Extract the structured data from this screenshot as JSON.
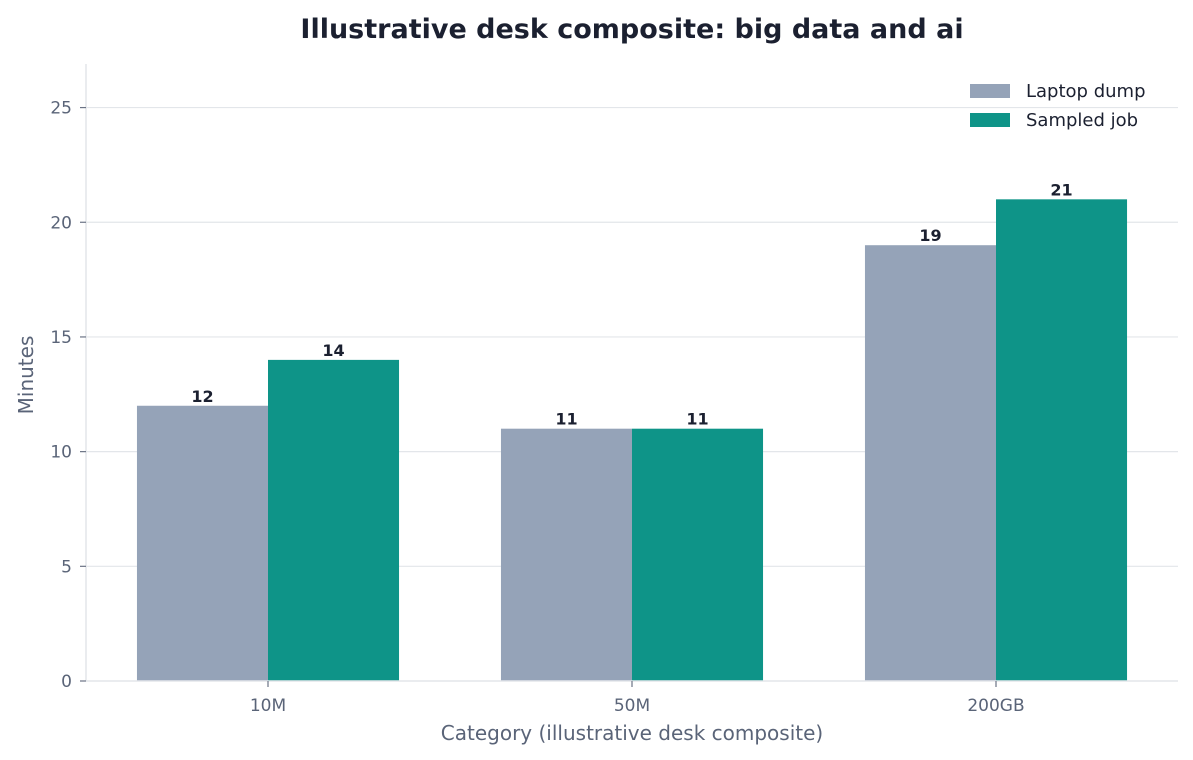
{
  "chart_data": {
    "type": "bar",
    "title": "Illustrative desk composite: big data and ai",
    "xlabel": "Category (illustrative desk composite)",
    "ylabel": "Minutes",
    "categories": [
      "10M",
      "50M",
      "200GB"
    ],
    "series": [
      {
        "name": "Laptop dump",
        "values": [
          12,
          11,
          19
        ],
        "color": "#95a3b8"
      },
      {
        "name": "Sampled job",
        "values": [
          14,
          11,
          21
        ],
        "color": "#0e9488"
      }
    ],
    "ylim": [
      0,
      26.9
    ],
    "yticks": [
      0,
      5,
      10,
      15,
      20,
      25
    ],
    "grid": true,
    "legend": "top-right"
  }
}
